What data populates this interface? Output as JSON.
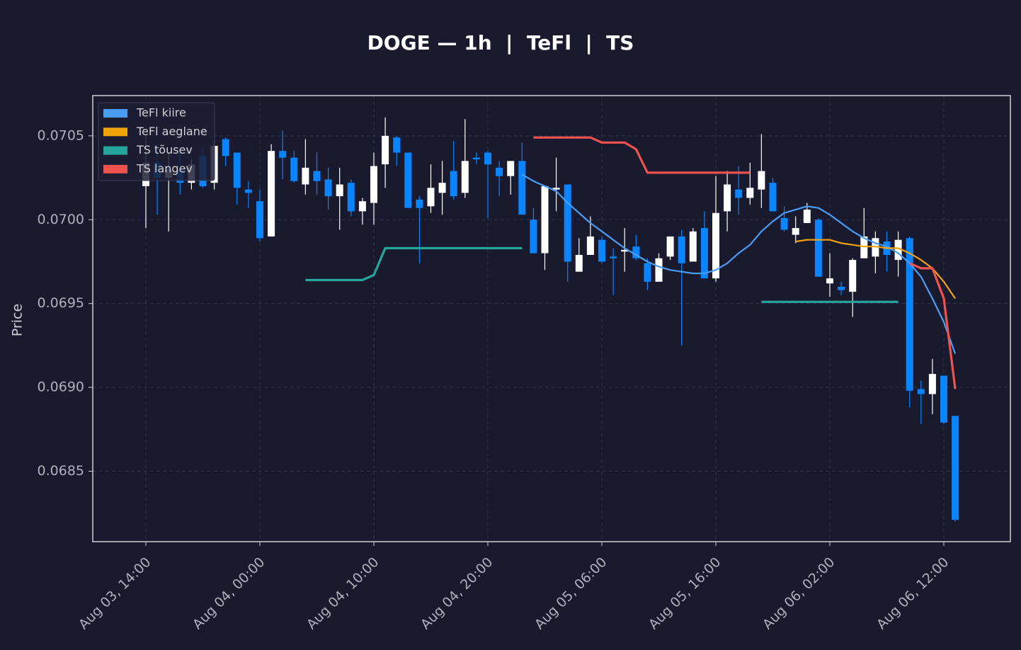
{
  "chart_data": {
    "type": "candlestick",
    "title": "DOGE — 1h  |  TeFl  |  TS",
    "y_label": "Price",
    "x": [
      "Aug 03, 14:00",
      "Aug 03, 15:00",
      "Aug 03, 16:00",
      "Aug 03, 17:00",
      "Aug 03, 18:00",
      "Aug 03, 19:00",
      "Aug 03, 20:00",
      "Aug 03, 21:00",
      "Aug 03, 22:00",
      "Aug 03, 23:00",
      "Aug 04, 00:00",
      "Aug 04, 01:00",
      "Aug 04, 02:00",
      "Aug 04, 03:00",
      "Aug 04, 04:00",
      "Aug 04, 05:00",
      "Aug 04, 06:00",
      "Aug 04, 07:00",
      "Aug 04, 08:00",
      "Aug 04, 09:00",
      "Aug 04, 10:00",
      "Aug 04, 11:00",
      "Aug 04, 12:00",
      "Aug 04, 13:00",
      "Aug 04, 14:00",
      "Aug 04, 15:00",
      "Aug 04, 16:00",
      "Aug 04, 17:00",
      "Aug 04, 18:00",
      "Aug 04, 19:00",
      "Aug 04, 20:00",
      "Aug 04, 21:00",
      "Aug 04, 22:00",
      "Aug 04, 23:00",
      "Aug 05, 00:00",
      "Aug 05, 01:00",
      "Aug 05, 02:00",
      "Aug 05, 03:00",
      "Aug 05, 04:00",
      "Aug 05, 05:00",
      "Aug 05, 06:00",
      "Aug 05, 07:00",
      "Aug 05, 08:00",
      "Aug 05, 09:00",
      "Aug 05, 10:00",
      "Aug 05, 11:00",
      "Aug 05, 12:00",
      "Aug 05, 13:00",
      "Aug 05, 14:00",
      "Aug 05, 15:00",
      "Aug 05, 16:00",
      "Aug 05, 17:00",
      "Aug 05, 18:00",
      "Aug 05, 19:00",
      "Aug 05, 20:00",
      "Aug 05, 21:00",
      "Aug 05, 22:00",
      "Aug 05, 23:00",
      "Aug 06, 00:00",
      "Aug 06, 01:00",
      "Aug 06, 02:00",
      "Aug 06, 03:00",
      "Aug 06, 04:00",
      "Aug 06, 05:00",
      "Aug 06, 06:00",
      "Aug 06, 07:00",
      "Aug 06, 08:00",
      "Aug 06, 09:00",
      "Aug 06, 10:00",
      "Aug 06, 11:00",
      "Aug 06, 12:00",
      "Aug 06, 13:00"
    ],
    "xticks": [
      "Aug 03, 14:00",
      "Aug 04, 00:00",
      "Aug 04, 10:00",
      "Aug 04, 20:00",
      "Aug 05, 06:00",
      "Aug 05, 16:00",
      "Aug 06, 02:00",
      "Aug 06, 12:00"
    ],
    "open": [
      0.0702,
      0.07034,
      0.07025,
      0.0703,
      0.07022,
      0.07038,
      0.07022,
      0.07048,
      0.0704,
      0.07018,
      0.07011,
      0.0699,
      0.07041,
      0.07037,
      0.07021,
      0.07029,
      0.07024,
      0.07014,
      0.07022,
      0.07005,
      0.0701,
      0.07033,
      0.07049,
      0.0704,
      0.07012,
      0.07008,
      0.07016,
      0.07029,
      0.07016,
      0.07037,
      0.0704,
      0.07031,
      0.07026,
      0.07035,
      0.07,
      0.0698,
      0.07018,
      0.07021,
      0.06969,
      0.06979,
      0.06988,
      0.06978,
      0.06981,
      0.06984,
      0.06974,
      0.06963,
      0.06978,
      0.0699,
      0.06975,
      0.06995,
      0.06965,
      0.07005,
      0.07018,
      0.07013,
      0.07018,
      0.07022,
      0.07001,
      0.06991,
      0.06998,
      0.07,
      0.06962,
      0.0696,
      0.06957,
      0.06977,
      0.06978,
      0.06987,
      0.06976,
      0.06989,
      0.06899,
      0.06896,
      0.06907,
      0.06883
    ],
    "high": [
      0.0705,
      0.07045,
      0.0704,
      0.0704,
      0.07036,
      0.07043,
      0.07047,
      0.07049,
      0.0704,
      0.07023,
      0.07018,
      0.07045,
      0.07053,
      0.07041,
      0.07048,
      0.0704,
      0.07031,
      0.07031,
      0.07024,
      0.07013,
      0.0704,
      0.07061,
      0.0705,
      0.0704,
      0.07014,
      0.07033,
      0.07035,
      0.07047,
      0.0706,
      0.0704,
      0.07041,
      0.07035,
      0.07035,
      0.07046,
      0.07007,
      0.0702,
      0.07037,
      0.07021,
      0.06989,
      0.07002,
      0.0699,
      0.06983,
      0.06995,
      0.06991,
      0.06977,
      0.0698,
      0.0699,
      0.06994,
      0.06995,
      0.07005,
      0.07026,
      0.07029,
      0.07032,
      0.07034,
      0.07051,
      0.07025,
      0.07008,
      0.07002,
      0.0701,
      0.07001,
      0.0698,
      0.06963,
      0.06977,
      0.07007,
      0.06993,
      0.06993,
      0.06993,
      0.0699,
      0.06904,
      0.06917,
      0.06907,
      0.06883
    ],
    "low": [
      0.06995,
      0.07003,
      0.06993,
      0.07015,
      0.07018,
      0.07019,
      0.07018,
      0.07032,
      0.07009,
      0.07007,
      0.06987,
      0.0699,
      0.07024,
      0.07022,
      0.07015,
      0.07015,
      0.07006,
      0.06994,
      0.07002,
      0.06997,
      0.06997,
      0.07019,
      0.07032,
      0.07007,
      0.06974,
      0.07004,
      0.07003,
      0.07012,
      0.07013,
      0.07033,
      0.07001,
      0.07014,
      0.07015,
      0.07003,
      0.0698,
      0.0697,
      0.07005,
      0.06963,
      0.06969,
      0.06979,
      0.06974,
      0.06955,
      0.06969,
      0.06976,
      0.06958,
      0.06963,
      0.06976,
      0.06925,
      0.06975,
      0.06965,
      0.06963,
      0.06993,
      0.07003,
      0.07009,
      0.07007,
      0.07005,
      0.06993,
      0.06986,
      0.06998,
      0.06966,
      0.06954,
      0.06955,
      0.06942,
      0.06977,
      0.06968,
      0.06969,
      0.06966,
      0.06888,
      0.06878,
      0.06884,
      0.06878,
      0.0682
    ],
    "close": [
      0.07034,
      0.07025,
      0.0703,
      0.07022,
      0.07033,
      0.0702,
      0.07044,
      0.07038,
      0.07019,
      0.07016,
      0.06989,
      0.07041,
      0.07037,
      0.07023,
      0.07031,
      0.07023,
      0.07014,
      0.07021,
      0.07005,
      0.07011,
      0.07032,
      0.0705,
      0.0704,
      0.07007,
      0.07007,
      0.07019,
      0.07022,
      0.07014,
      0.07035,
      0.07036,
      0.07033,
      0.07026,
      0.07035,
      0.07003,
      0.0698,
      0.0702,
      0.07019,
      0.06975,
      0.06979,
      0.0699,
      0.06975,
      0.06977,
      0.06982,
      0.06977,
      0.06963,
      0.06977,
      0.0699,
      0.06974,
      0.06993,
      0.06965,
      0.07004,
      0.07021,
      0.07013,
      0.07019,
      0.07029,
      0.07005,
      0.06994,
      0.06995,
      0.07006,
      0.06966,
      0.06965,
      0.06958,
      0.06976,
      0.0699,
      0.06989,
      0.06979,
      0.06988,
      0.06898,
      0.06896,
      0.06908,
      0.06879,
      0.06821
    ],
    "up_color": "#ffffff",
    "down_color": "#0a84ff",
    "series": [
      {
        "name": "TeFl kiire",
        "color": "#4a9df5",
        "values": [
          null,
          null,
          null,
          null,
          null,
          null,
          null,
          null,
          null,
          null,
          null,
          null,
          null,
          null,
          null,
          null,
          null,
          null,
          null,
          null,
          null,
          null,
          null,
          null,
          null,
          null,
          null,
          null,
          null,
          null,
          null,
          null,
          null,
          0.07027,
          0.07023,
          0.0702,
          0.07017,
          0.0701,
          0.07004,
          0.06998,
          0.06993,
          0.06988,
          0.06983,
          0.06979,
          0.06975,
          0.06972,
          0.0697,
          0.06969,
          0.06968,
          0.06968,
          0.0697,
          0.06974,
          0.0698,
          0.06985,
          0.06993,
          0.06999,
          0.07004,
          0.07006,
          0.07008,
          0.07007,
          0.07003,
          0.06998,
          0.06993,
          0.06989,
          0.06986,
          0.06984,
          0.0698,
          0.06974,
          0.06966,
          0.06953,
          0.06939,
          0.0692
        ]
      },
      {
        "name": "TeFl aeglane",
        "color": "#f0a30a",
        "values": [
          null,
          null,
          null,
          null,
          null,
          null,
          null,
          null,
          null,
          null,
          null,
          null,
          null,
          null,
          null,
          null,
          null,
          null,
          null,
          null,
          null,
          null,
          null,
          null,
          null,
          null,
          null,
          null,
          null,
          null,
          null,
          null,
          null,
          null,
          null,
          null,
          null,
          null,
          null,
          null,
          null,
          null,
          null,
          null,
          null,
          null,
          null,
          null,
          null,
          null,
          null,
          null,
          null,
          null,
          null,
          null,
          null,
          0.06987,
          0.06988,
          0.06988,
          0.06988,
          0.06986,
          0.06985,
          0.06984,
          0.06984,
          0.06983,
          0.06983,
          0.0698,
          0.06976,
          0.06971,
          0.06963,
          0.06953
        ]
      },
      {
        "name": "TS tõusev",
        "color": "#26a69a",
        "values": [
          null,
          null,
          null,
          null,
          null,
          null,
          null,
          null,
          null,
          null,
          null,
          null,
          null,
          null,
          0.06964,
          0.06964,
          0.06964,
          0.06964,
          0.06964,
          0.06964,
          0.06967,
          0.06983,
          0.06983,
          0.06983,
          0.06983,
          0.06983,
          0.06983,
          0.06983,
          0.06983,
          0.06983,
          0.06983,
          0.06983,
          0.06983,
          0.06983,
          null,
          null,
          null,
          null,
          null,
          null,
          null,
          null,
          null,
          null,
          null,
          null,
          null,
          null,
          null,
          null,
          null,
          null,
          null,
          null,
          0.06951,
          0.06951,
          0.06951,
          0.06951,
          0.06951,
          0.06951,
          0.06951,
          0.06951,
          0.06951,
          0.06951,
          0.06951,
          0.06951,
          0.06951,
          null,
          null,
          null,
          null,
          null
        ]
      },
      {
        "name": "TS langev",
        "color": "#ef5350",
        "values": [
          null,
          null,
          null,
          null,
          null,
          null,
          null,
          null,
          null,
          null,
          null,
          null,
          null,
          null,
          null,
          null,
          null,
          null,
          null,
          null,
          null,
          null,
          null,
          null,
          null,
          null,
          null,
          null,
          null,
          null,
          null,
          null,
          null,
          null,
          0.07049,
          0.07049,
          0.07049,
          0.07049,
          0.07049,
          0.07049,
          0.07046,
          0.07046,
          0.07046,
          0.07042,
          0.07028,
          0.07028,
          0.07028,
          0.07028,
          0.07028,
          0.07028,
          0.07028,
          0.07028,
          0.07028,
          0.07028,
          null,
          null,
          null,
          null,
          null,
          null,
          null,
          null,
          null,
          null,
          null,
          null,
          null,
          0.06974,
          0.06971,
          0.06971,
          0.06953,
          0.06899
        ]
      }
    ],
    "ylim": [
      0.06808,
      0.07074
    ],
    "yticks": [
      0.0685,
      {
        "value": 0.069,
        "label": "0.0690"
      },
      0.0695,
      {
        "value": 0.07,
        "label": "0.0700"
      },
      0.0705
    ],
    "grid": true,
    "legend": "upper left"
  }
}
